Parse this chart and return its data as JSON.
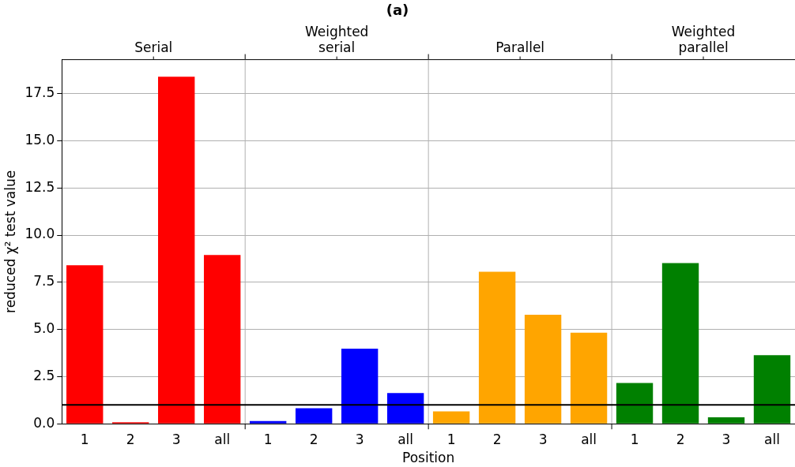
{
  "chart_data": {
    "type": "bar",
    "title": "(a)",
    "xlabel": "Position",
    "ylabel": "reduced χ² test value",
    "categories": [
      "1",
      "2",
      "3",
      "all",
      "1",
      "2",
      "3",
      "all",
      "1",
      "2",
      "3",
      "all",
      "1",
      "2",
      "3",
      "all"
    ],
    "annotations": [
      "Serial",
      "Weighted serial",
      "Parallel",
      "Weighted parallel"
    ],
    "values": [
      8.4,
      0.08,
      18.4,
      8.95,
      0.14,
      0.82,
      3.98,
      1.63,
      0.66,
      8.06,
      5.78,
      4.83,
      2.16,
      8.52,
      0.34,
      3.64
    ],
    "colors": [
      "#ff0000",
      "#ff0000",
      "#ff0000",
      "#ff0000",
      "#0000ff",
      "#0000ff",
      "#0000ff",
      "#0000ff",
      "#ffa500",
      "#ffa500",
      "#ffa500",
      "#ffa500",
      "#008000",
      "#008000",
      "#008000",
      "#008000"
    ],
    "ylim": [
      0,
      19.3
    ],
    "yticks": [
      {
        "value": 0,
        "label": "0.0"
      },
      {
        "value": 2.5,
        "label": "2.5"
      },
      {
        "value": 5,
        "label": "5.0"
      },
      {
        "value": 7.5,
        "label": "7.5"
      },
      {
        "value": 10,
        "label": "10.0"
      },
      {
        "value": 12.5,
        "label": "12.5"
      },
      {
        "value": 15,
        "label": "15.0"
      },
      {
        "value": 17.5,
        "label": "17.5"
      }
    ],
    "ref_lines": [
      {
        "axis": "y",
        "value": 1,
        "color": "#000000"
      }
    ],
    "grid": true,
    "legend": false
  }
}
